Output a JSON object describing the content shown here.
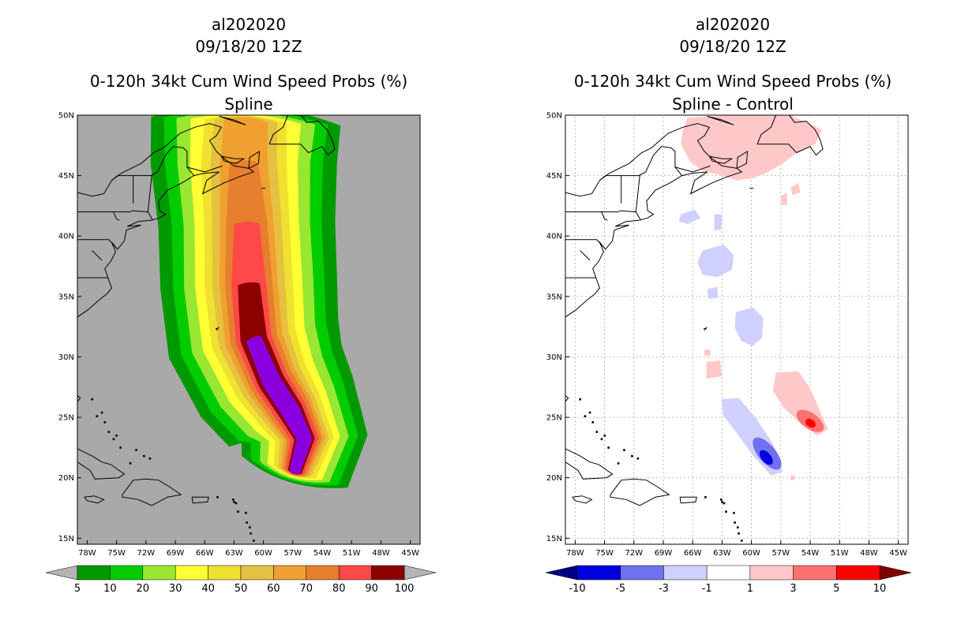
{
  "colors": {
    "land_bg": "#a9a9a9",
    "neg_light": "#d0d0ff",
    "neg_mid": "#7070f0",
    "neg_strong": "#0000e0",
    "neg_max": "#000080",
    "pos_light": "#ffc8c8",
    "pos_mid": "#ff7070",
    "pos_strong": "#ff0000",
    "pos_max": "#800000"
  },
  "chart_data": [
    {
      "type": "heatmap",
      "storm_id": "al202020",
      "date": "09/18/20 12Z",
      "title": "0-120h 34kt Cum Wind Speed Probs (%)",
      "subtitle": "Spline",
      "xlim": [
        -79,
        -44
      ],
      "ylim": [
        14.5,
        50
      ],
      "x_ticks": [
        -78,
        -75,
        -72,
        -69,
        -66,
        -63,
        -60,
        -57,
        -54,
        -51,
        -48,
        -45
      ],
      "x_tick_labels": [
        "78W",
        "75W",
        "72W",
        "69W",
        "66W",
        "63W",
        "60W",
        "57W",
        "54W",
        "51W",
        "48W",
        "45W"
      ],
      "y_ticks": [
        15,
        20,
        25,
        30,
        35,
        40,
        45,
        50
      ],
      "y_tick_labels": [
        "15N",
        "20N",
        "25N",
        "30N",
        "35N",
        "40N",
        "45N",
        "50N"
      ],
      "grid": false,
      "colorbar": {
        "labels": [
          "5",
          "10",
          "20",
          "30",
          "40",
          "50",
          "60",
          "70",
          "80",
          "90",
          "100"
        ],
        "colors": [
          "#009900",
          "#00cc00",
          "#99e633",
          "#ffff33",
          "#f0e030",
          "#e6c040",
          "#f0a030",
          "#e67f2e",
          "#ff4848",
          "#8c0000",
          "#8a00de"
        ],
        "end_color": "#b4b4b4"
      },
      "contour_levels": [
        {
          "p": 5,
          "color": "#009900"
        },
        {
          "p": 10,
          "color": "#00cc00"
        },
        {
          "p": 20,
          "color": "#99e633"
        },
        {
          "p": 30,
          "color": "#ffff33"
        },
        {
          "p": 40,
          "color": "#f0e030"
        },
        {
          "p": 50,
          "color": "#e6c040"
        },
        {
          "p": 60,
          "color": "#f0a030"
        },
        {
          "p": 70,
          "color": "#e67f2e"
        },
        {
          "p": 80,
          "color": "#ff4848"
        },
        {
          "p": 90,
          "color": "#8c0000"
        },
        {
          "p": 100,
          "color": "#8a00de"
        }
      ]
    },
    {
      "type": "heatmap",
      "storm_id": "al202020",
      "date": "09/18/20 12Z",
      "title": "0-120h 34kt Cum Wind Speed Probs (%)",
      "subtitle": "Spline - Control",
      "xlim": [
        -79,
        -44
      ],
      "ylim": [
        14.5,
        50
      ],
      "x_ticks": [
        -78,
        -75,
        -72,
        -69,
        -66,
        -63,
        -60,
        -57,
        -54,
        -51,
        -48,
        -45
      ],
      "x_tick_labels": [
        "78W",
        "75W",
        "72W",
        "69W",
        "66W",
        "63W",
        "60W",
        "57W",
        "54W",
        "51W",
        "48W",
        "45W"
      ],
      "y_ticks": [
        15,
        20,
        25,
        30,
        35,
        40,
        45,
        50
      ],
      "y_tick_labels": [
        "15N",
        "20N",
        "25N",
        "30N",
        "35N",
        "40N",
        "45N",
        "50N"
      ],
      "grid": true,
      "colorbar": {
        "labels": [
          "-10",
          "-5",
          "-3",
          "-1",
          "1",
          "3",
          "5",
          "10"
        ],
        "colors": [
          "#0000e0",
          "#7070f0",
          "#d0d0ff",
          "#ffffff",
          "#ffc8c8",
          "#ff7070",
          "#ff0000"
        ],
        "end_colors": [
          "#000080",
          "#800000"
        ]
      }
    }
  ]
}
